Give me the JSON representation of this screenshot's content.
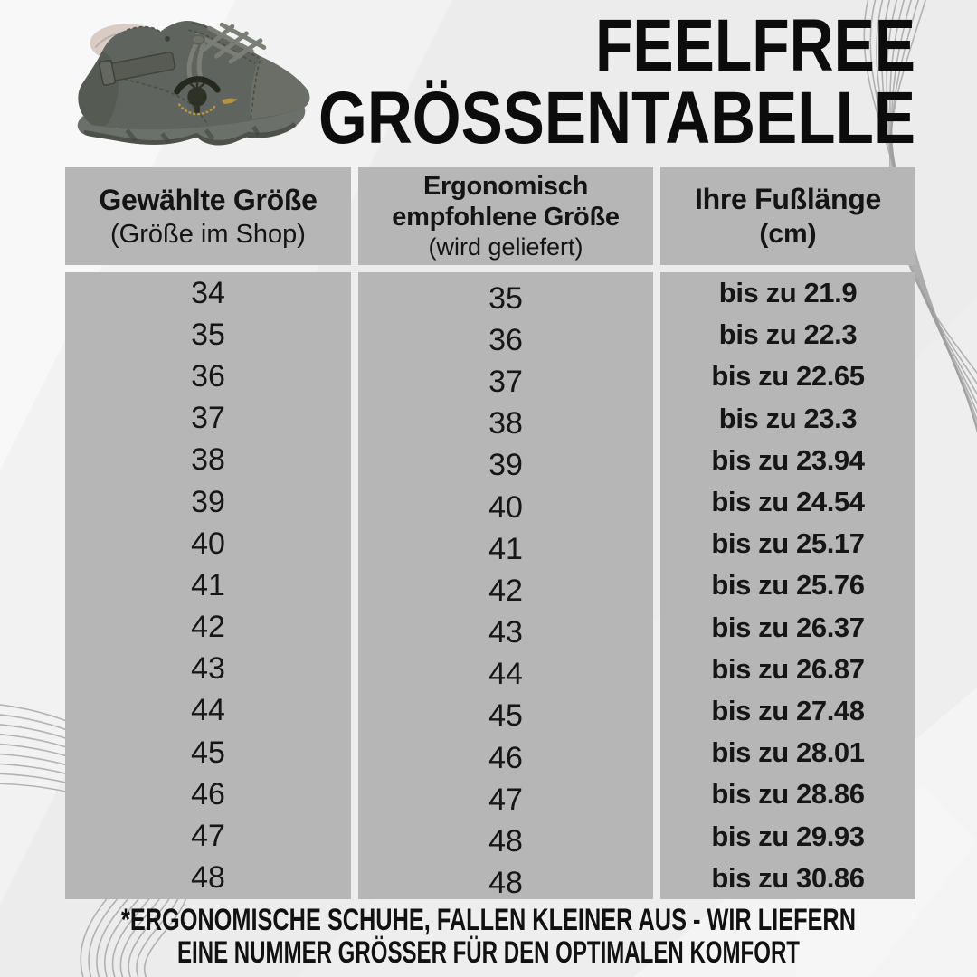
{
  "brand": {
    "title_line1": "FEELFREE",
    "title_line2": "GRÖSSENTABELLE"
  },
  "product": {
    "image_name": "grey-high-top-barefoot-shoe"
  },
  "chart_data": {
    "type": "table",
    "title": "FEELFREE GRÖSSENTABELLE",
    "columns": [
      {
        "title": "Gewählte Größe",
        "subtitle": "(Größe im Shop)"
      },
      {
        "title": "Ergonomisch empfohlene Größe",
        "subtitle": "(wird geliefert)"
      },
      {
        "title": "Ihre Fußlänge",
        "subtitle": "(cm)"
      }
    ],
    "rows": [
      [
        "34",
        "35",
        "bis zu 21.9"
      ],
      [
        "35",
        "36",
        "bis zu 22.3"
      ],
      [
        "36",
        "37",
        "bis zu 22.65"
      ],
      [
        "37",
        "38",
        "bis zu 23.3"
      ],
      [
        "38",
        "39",
        "bis zu 23.94"
      ],
      [
        "39",
        "40",
        "bis zu 24.54"
      ],
      [
        "40",
        "41",
        "bis zu 25.17"
      ],
      [
        "41",
        "42",
        "bis zu 25.76"
      ],
      [
        "42",
        "43",
        "bis zu 26.37"
      ],
      [
        "43",
        "44",
        "bis zu 26.87"
      ],
      [
        "44",
        "45",
        "bis zu 27.48"
      ],
      [
        "45",
        "46",
        "bis zu 28.01"
      ],
      [
        "46",
        "47",
        "bis zu 28.86"
      ],
      [
        "47",
        "48",
        "bis zu 29.93"
      ],
      [
        "48",
        "48",
        "bis zu 30.86"
      ]
    ]
  },
  "footnote": {
    "line1": "*ERGONOMISCHE SCHUHE, FALLEN KLEINER AUS - WIR LIEFERN",
    "line2": "EINE NUMMER GRÖSSER FÜR DEN OPTIMALEN KOMFORT"
  },
  "colors": {
    "cell_background": "#b6b6b6",
    "page_background": "#eeeeee",
    "text": "#141414",
    "ornament_line": "#9d9d9d"
  }
}
